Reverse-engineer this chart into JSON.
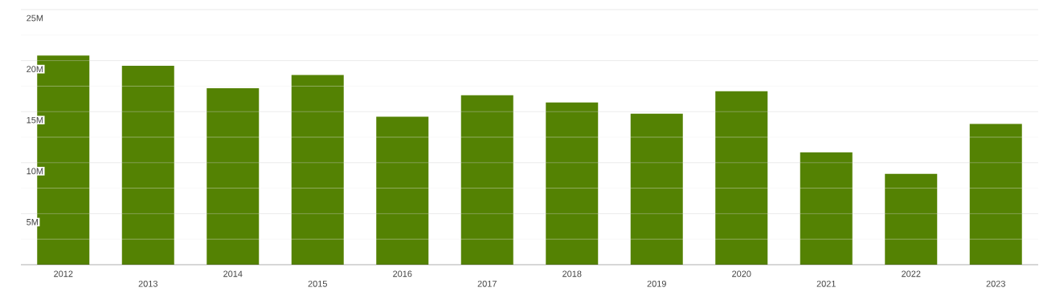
{
  "chart_data": {
    "type": "bar",
    "categories": [
      "2012",
      "2013",
      "2014",
      "2015",
      "2016",
      "2017",
      "2018",
      "2019",
      "2020",
      "2021",
      "2022",
      "2023"
    ],
    "values": [
      20.5,
      19.5,
      17.3,
      18.6,
      14.5,
      16.6,
      15.9,
      14.8,
      17.0,
      11.0,
      8.9,
      13.8
    ],
    "color": "#548203",
    "ylim": [
      0,
      25
    ],
    "yticks": [
      {
        "value": 2.5,
        "label": null
      },
      {
        "value": 5,
        "label": "5M"
      },
      {
        "value": 7.5,
        "label": null
      },
      {
        "value": 10,
        "label": "10M"
      },
      {
        "value": 12.5,
        "label": null
      },
      {
        "value": 15,
        "label": "15M"
      },
      {
        "value": 17.5,
        "label": null
      },
      {
        "value": 20,
        "label": "20M"
      },
      {
        "value": 22.5,
        "label": null
      },
      {
        "value": 25,
        "label": "25M"
      }
    ],
    "grid": "y"
  }
}
